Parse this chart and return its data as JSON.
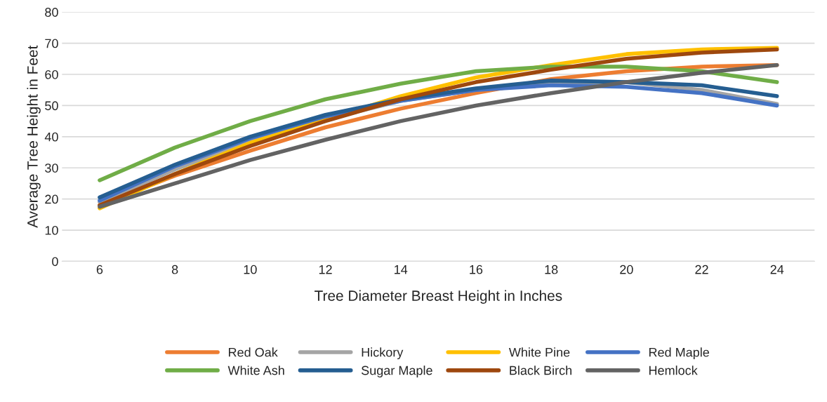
{
  "chart_data": {
    "type": "line",
    "xlabel": "Tree Diameter Breast Height in Inches",
    "ylabel": "Average Tree Height in Feet",
    "categories": [
      "6",
      "8",
      "10",
      "12",
      "14",
      "16",
      "18",
      "20",
      "22",
      "24"
    ],
    "ylim": [
      0,
      80
    ],
    "yticks": [
      0,
      10,
      20,
      30,
      40,
      50,
      60,
      70,
      80
    ],
    "grid": "y",
    "legend": "bottom",
    "marker": "none",
    "line_style": "solid",
    "series": [
      {
        "name": "Red Oak",
        "color": "#ed7d31",
        "values": [
          18,
          27.5,
          35.5,
          43,
          49,
          54,
          58.5,
          61,
          62.5,
          63
        ]
      },
      {
        "name": "Hickory",
        "color": "#a5a5a5",
        "values": [
          19,
          29.5,
          38.5,
          45.5,
          51.5,
          55,
          57,
          57.5,
          55,
          50.5
        ]
      },
      {
        "name": "White Pine",
        "color": "#ffc000",
        "values": [
          17,
          28,
          38,
          45.5,
          53,
          59,
          63,
          66.5,
          68,
          68.5
        ]
      },
      {
        "name": "Red Maple",
        "color": "#4472c4",
        "values": [
          19.5,
          30.5,
          39.5,
          46.5,
          51.5,
          55,
          56.5,
          56,
          54,
          50
        ]
      },
      {
        "name": "White Ash",
        "color": "#70ad47",
        "values": [
          26,
          36.5,
          45,
          52,
          57,
          61,
          62.5,
          62.5,
          61,
          57.5
        ]
      },
      {
        "name": "Sugar Maple",
        "color": "#255e91",
        "values": [
          20.5,
          31,
          40,
          47,
          52,
          55.5,
          58,
          57.5,
          56.5,
          53
        ]
      },
      {
        "name": "Black Birch",
        "color": "#9e480e",
        "values": [
          18,
          28,
          37,
          45,
          52,
          57.5,
          61.5,
          65,
          67,
          68
        ]
      },
      {
        "name": "Hemlock",
        "color": "#636363",
        "values": [
          17.5,
          25,
          32.5,
          39,
          45,
          50,
          54,
          57.5,
          60.5,
          63
        ]
      }
    ]
  }
}
